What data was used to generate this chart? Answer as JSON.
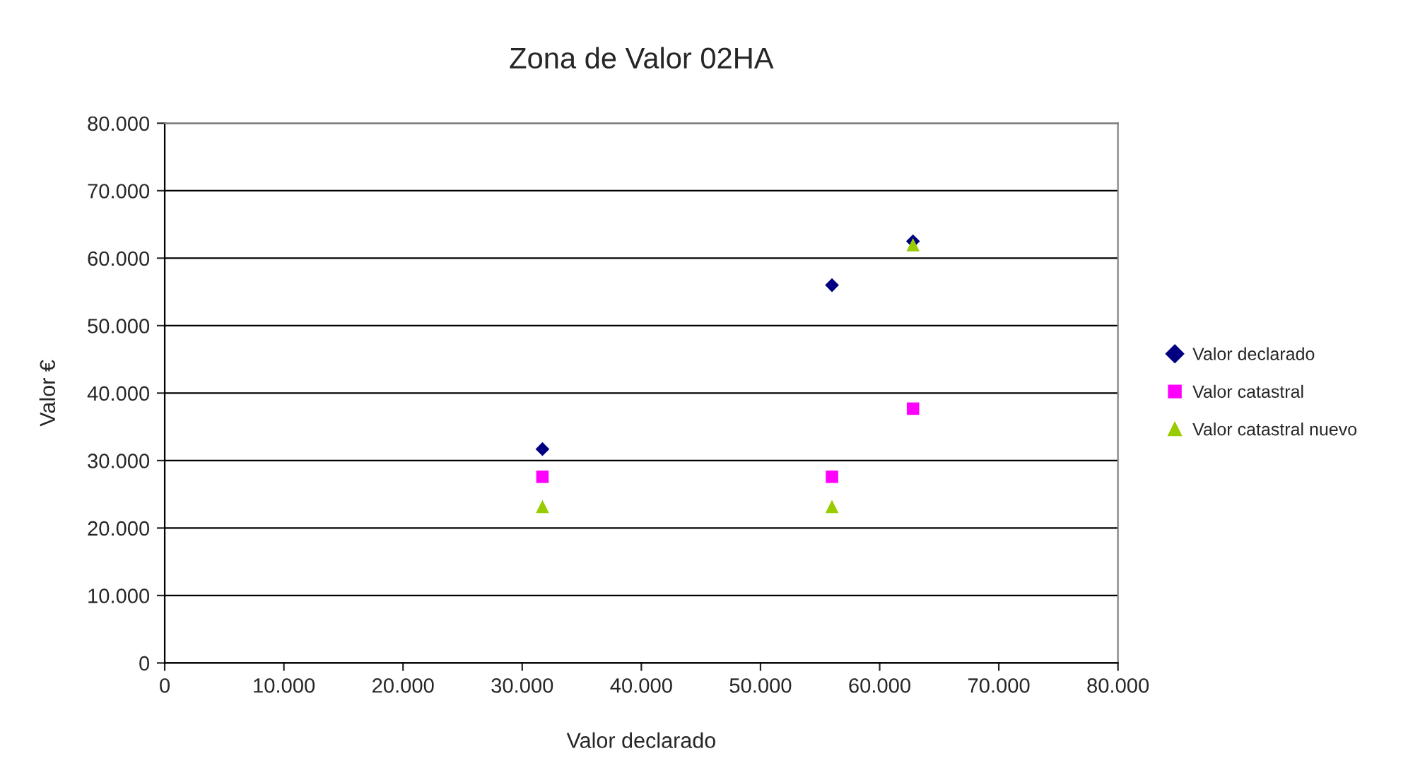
{
  "chart_data": {
    "type": "scatter",
    "title": "Zona de Valor 02HA",
    "xlabel": "Valor declarado",
    "ylabel": "Valor €",
    "x": [
      31700,
      56000,
      62800
    ],
    "series": [
      {
        "name": "Valor declarado",
        "color": "#000080",
        "marker": "diamond",
        "values": [
          31700,
          56000,
          62500
        ]
      },
      {
        "name": "Valor catastral",
        "color": "#ff00ff",
        "marker": "square",
        "values": [
          27600,
          27600,
          37700
        ]
      },
      {
        "name": "Valor catastral nuevo",
        "color": "#99cc00",
        "marker": "triangle",
        "values": [
          23200,
          23200,
          62000
        ]
      }
    ],
    "xlim": [
      0,
      80000
    ],
    "ylim": [
      0,
      80000
    ],
    "xticks": [
      0,
      {
        "value": 10000,
        "label": "10.000"
      },
      {
        "value": 20000,
        "label": "20.000"
      },
      {
        "value": 30000,
        "label": "30.000"
      },
      {
        "value": 40000,
        "label": "40.000"
      },
      {
        "value": 50000,
        "label": "50.000"
      },
      {
        "value": 60000,
        "label": "60.000"
      },
      {
        "value": 70000,
        "label": "70.000"
      },
      {
        "value": 80000,
        "label": "80.000"
      }
    ],
    "yticks": [
      0,
      {
        "value": 10000,
        "label": "10.000"
      },
      {
        "value": 20000,
        "label": "20.000"
      },
      {
        "value": 30000,
        "label": "30.000"
      },
      {
        "value": 40000,
        "label": "40.000"
      },
      {
        "value": 50000,
        "label": "50.000"
      },
      {
        "value": 60000,
        "label": "60.000"
      },
      {
        "value": 70000,
        "label": "70.000"
      },
      {
        "value": 80000,
        "label": "80.000"
      }
    ],
    "grid": "y",
    "legend": "right"
  }
}
